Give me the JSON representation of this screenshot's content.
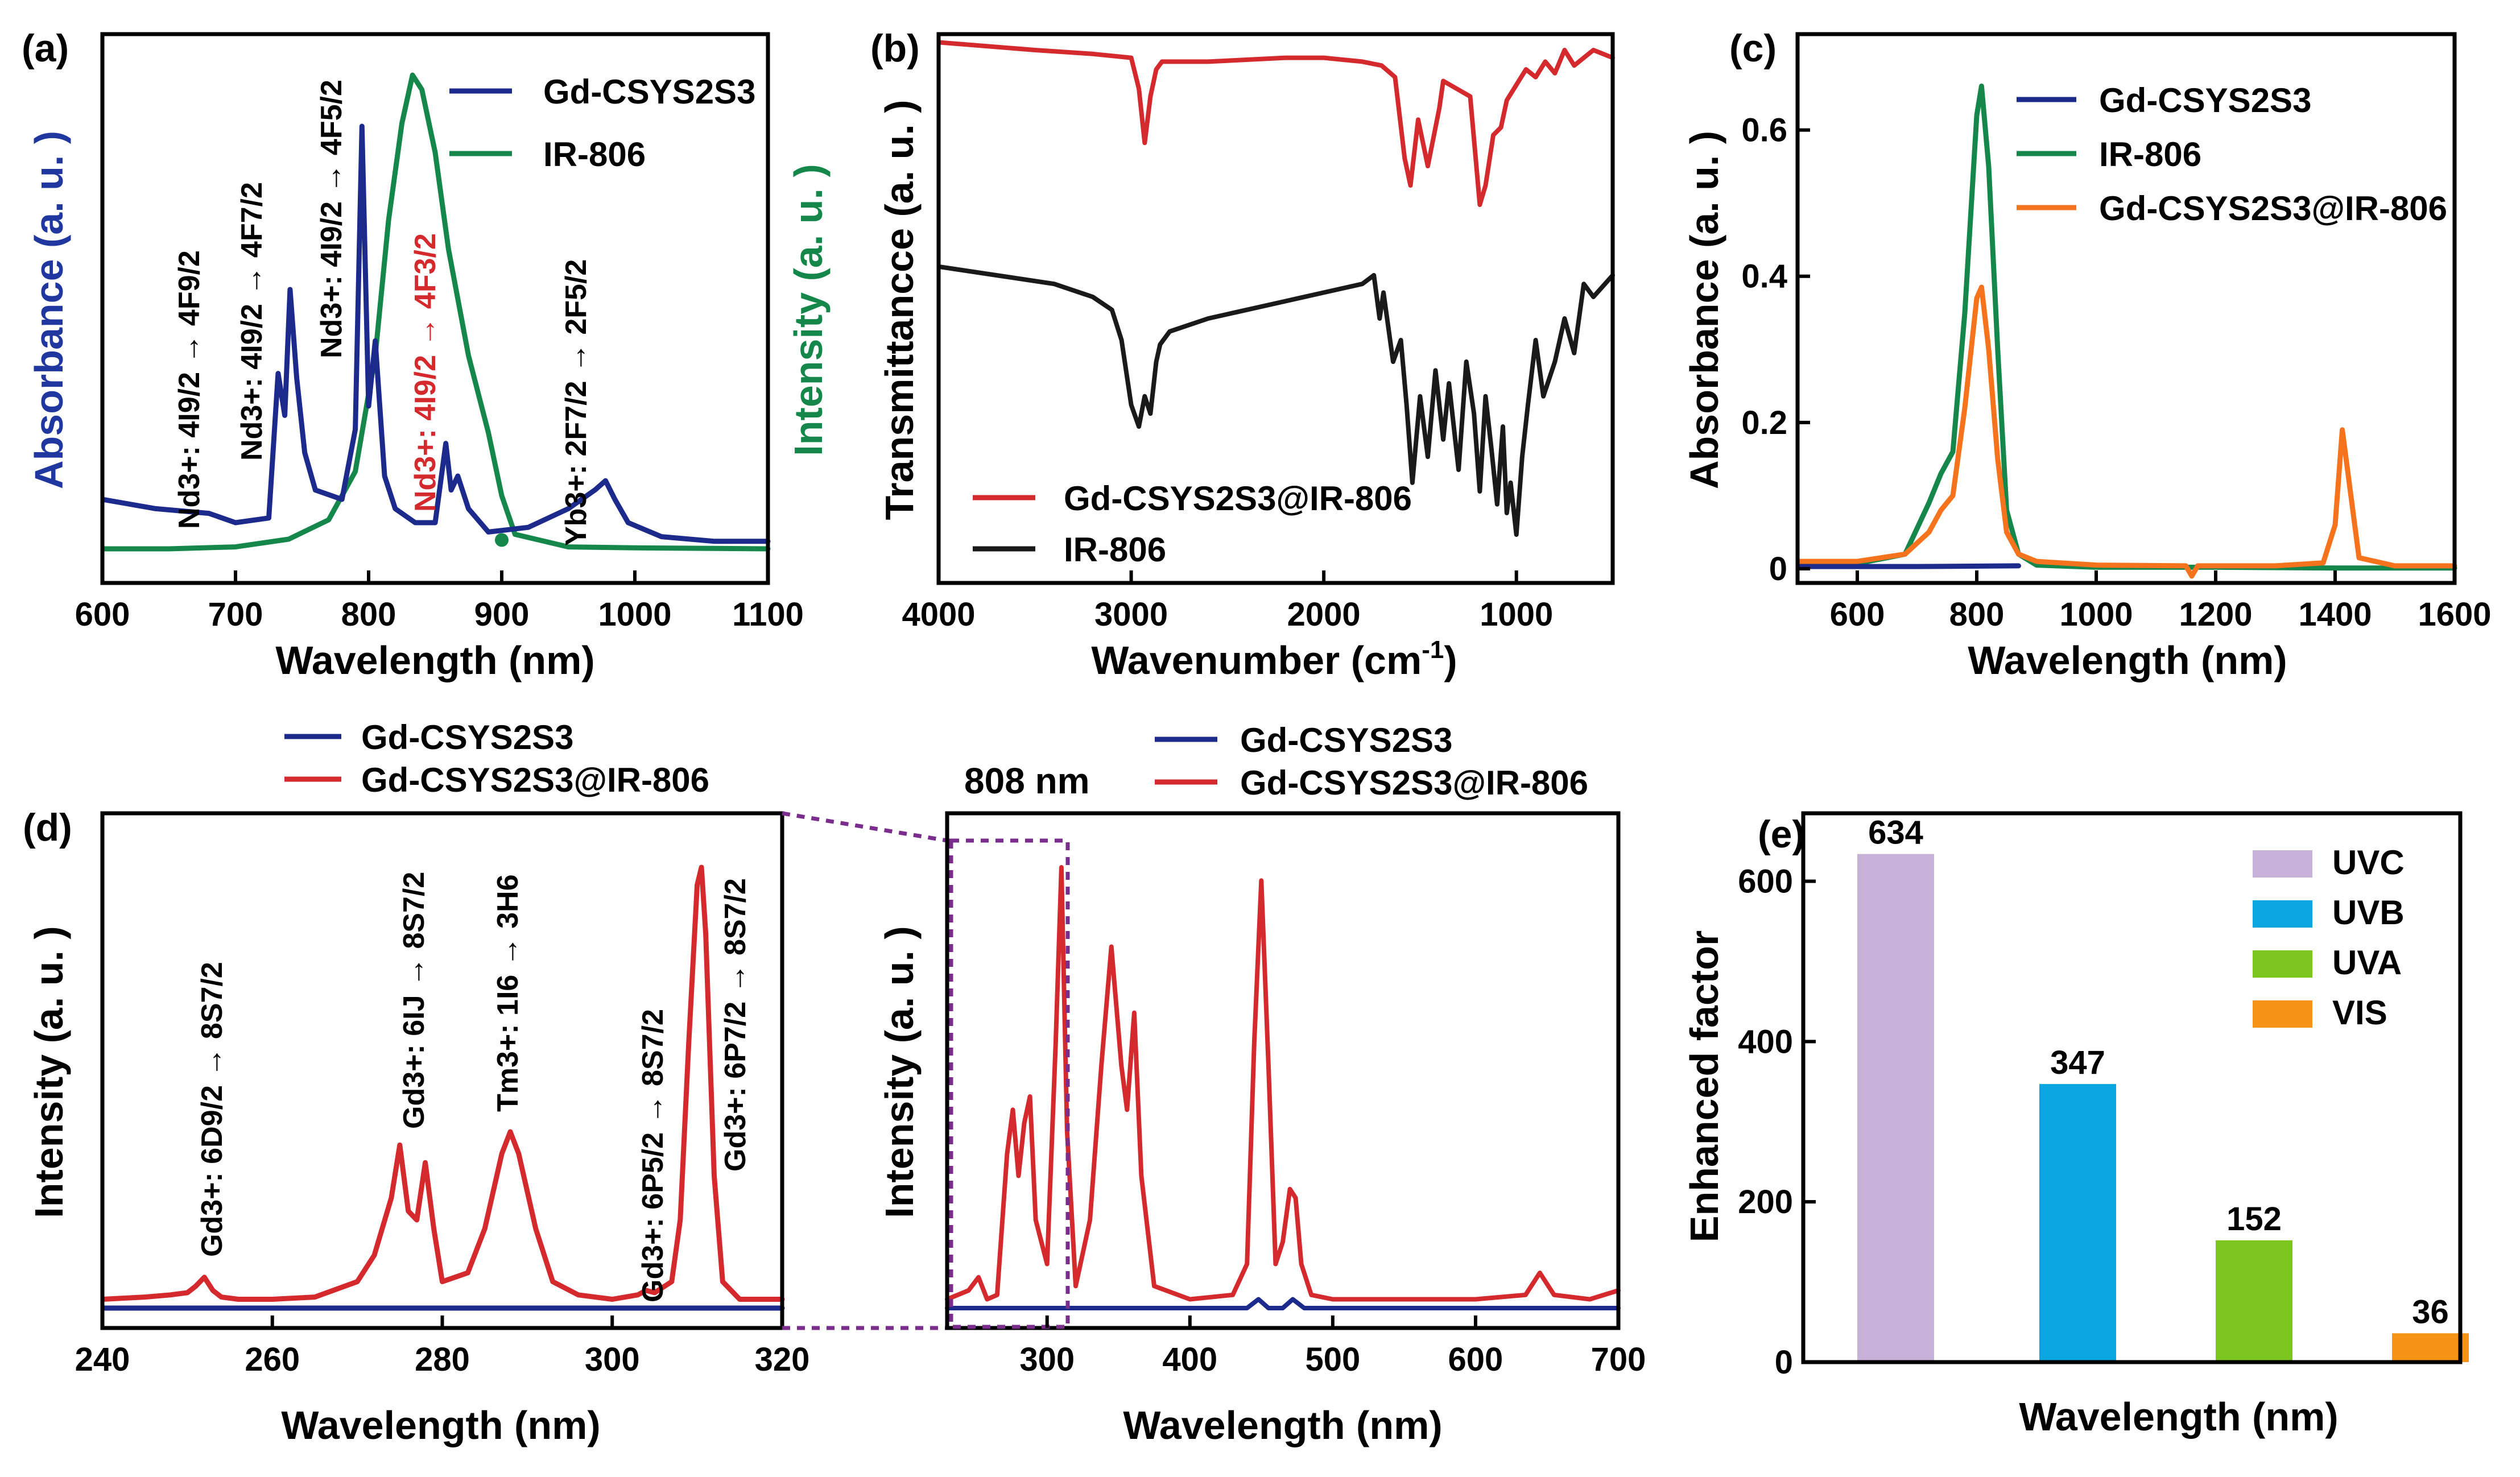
{
  "colors": {
    "navy": "#1c2a8c",
    "green": "#16874a",
    "red": "#d42a2e",
    "black": "#1a1a1a",
    "orange": "#f5731c",
    "purple": "#7a2d8c",
    "blue_label": "#2137a0"
  },
  "chart_data": [
    {
      "panel": "(a)",
      "type": "line",
      "xlabel": "Wavelength (nm)",
      "ylabel": "Absorbance (a. u. )",
      "ylabel2": "Intensity (a. u. )",
      "xlim": [
        600,
        1100
      ],
      "xticks": [
        "600",
        "700",
        "800",
        "900",
        "1000",
        "1100"
      ],
      "legend": [
        "Gd-CSYS2S3",
        "IR-806"
      ],
      "annotations": [
        "Nd3+: 4I9/2 → 4F9/2",
        "Nd3+: 4I9/2 → 4F7/2",
        "Nd3+: 4I9/2 → 4F5/2",
        "Nd3+: 4I9/2 → 4F3/2",
        "Yb3+: 2F7/2 → 2F5/2"
      ],
      "series": [
        {
          "name": "Gd-CSYS2S3",
          "x": [
            600,
            640,
            680,
            700,
            725,
            732,
            737,
            741,
            746,
            752,
            760,
            780,
            790,
            795,
            800,
            805,
            812,
            820,
            835,
            850,
            858,
            862,
            867,
            875,
            890,
            920,
            950,
            970,
            978,
            985,
            995,
            1020,
            1060,
            1100
          ],
          "y": [
            0.1,
            0.08,
            0.07,
            0.05,
            0.06,
            0.37,
            0.28,
            0.55,
            0.36,
            0.2,
            0.12,
            0.1,
            0.25,
            0.9,
            0.3,
            0.44,
            0.15,
            0.08,
            0.05,
            0.05,
            0.22,
            0.12,
            0.15,
            0.08,
            0.03,
            0.04,
            0.08,
            0.12,
            0.14,
            0.1,
            0.05,
            0.02,
            0.01,
            0.01
          ]
        },
        {
          "name": "IR-806",
          "x": [
            600,
            650,
            700,
            740,
            770,
            790,
            805,
            815,
            825,
            833,
            840,
            850,
            860,
            875,
            890,
            900,
            910,
            950,
            1000,
            1050,
            1100
          ],
          "y": [
            0,
            0,
            0.004,
            0.02,
            0.06,
            0.16,
            0.4,
            0.68,
            0.88,
            0.98,
            0.95,
            0.82,
            0.62,
            0.4,
            0.24,
            0.11,
            0.03,
            0.004,
            0.002,
            0.001,
            0
          ]
        }
      ]
    },
    {
      "panel": "(b)",
      "type": "line",
      "xlabel": "Wavenumber (cm-1)",
      "ylabel": "Transmittancce (a. u. )",
      "xlim": [
        4000,
        500
      ],
      "xticks": [
        "4000",
        "3000",
        "2000",
        "1000"
      ],
      "legend": [
        "Gd-CSYS2S3@IR-806",
        "IR-806"
      ],
      "series": [
        {
          "name": "Gd-CSYS2S3@IR-806",
          "x": [
            4000,
            3500,
            3200,
            3000,
            2960,
            2930,
            2900,
            2870,
            2840,
            2600,
            2200,
            2000,
            1800,
            1700,
            1630,
            1580,
            1550,
            1510,
            1460,
            1400,
            1380,
            1240,
            1190,
            1160,
            1120,
            1080,
            1050,
            950,
            900,
            850,
            800,
            750,
            700,
            600,
            500
          ],
          "y": [
            0.92,
            0.9,
            0.89,
            0.88,
            0.8,
            0.66,
            0.78,
            0.85,
            0.87,
            0.87,
            0.88,
            0.88,
            0.87,
            0.86,
            0.83,
            0.62,
            0.55,
            0.72,
            0.6,
            0.75,
            0.82,
            0.78,
            0.5,
            0.55,
            0.68,
            0.7,
            0.77,
            0.85,
            0.83,
            0.87,
            0.84,
            0.9,
            0.86,
            0.9,
            0.88
          ]
        },
        {
          "name": "IR-806",
          "x": [
            4000,
            3700,
            3400,
            3200,
            3100,
            3050,
            3000,
            2960,
            2930,
            2900,
            2870,
            2850,
            2800,
            2600,
            2400,
            2200,
            2000,
            1800,
            1740,
            1710,
            1690,
            1640,
            1600,
            1570,
            1540,
            1500,
            1460,
            1420,
            1380,
            1350,
            1300,
            1260,
            1220,
            1190,
            1160,
            1130,
            1100,
            1070,
            1050,
            1030,
            1000,
            970,
            940,
            900,
            860,
            800,
            750,
            700,
            650,
            600,
            500
          ],
          "y": [
            0.62,
            0.6,
            0.58,
            0.55,
            0.52,
            0.45,
            0.3,
            0.25,
            0.32,
            0.28,
            0.4,
            0.44,
            0.47,
            0.5,
            0.52,
            0.54,
            0.56,
            0.58,
            0.6,
            0.5,
            0.56,
            0.4,
            0.45,
            0.3,
            0.12,
            0.32,
            0.18,
            0.38,
            0.22,
            0.35,
            0.15,
            0.4,
            0.28,
            0.1,
            0.32,
            0.2,
            0.07,
            0.25,
            0.05,
            0.12,
            0.0,
            0.18,
            0.3,
            0.45,
            0.32,
            0.4,
            0.5,
            0.42,
            0.58,
            0.55,
            0.6
          ]
        }
      ]
    },
    {
      "panel": "(c)",
      "type": "line",
      "xlabel": "Wavelength (nm)",
      "ylabel": "Absorbance (a. u. )",
      "xlim": [
        500,
        1600
      ],
      "ylim": [
        0,
        0.7
      ],
      "xticks": [
        "600",
        "800",
        "1000",
        "1200",
        "1400",
        "1600"
      ],
      "yticks": [
        "0",
        "0.2",
        "0.4",
        "0.6"
      ],
      "legend": [
        "Gd-CSYS2S3",
        "IR-806",
        "Gd-CSYS2S3@IR-806"
      ],
      "series": [
        {
          "name": "Gd-CSYS2S3",
          "x": [
            500,
            700,
            870
          ],
          "y": [
            0.003,
            0.003,
            0.004
          ]
        },
        {
          "name": "IR-806",
          "x": [
            500,
            600,
            680,
            720,
            740,
            760,
            780,
            800,
            808,
            820,
            835,
            850,
            870,
            900,
            1000,
            1200,
            1400,
            1600
          ],
          "y": [
            0.005,
            0.007,
            0.02,
            0.09,
            0.13,
            0.16,
            0.35,
            0.62,
            0.66,
            0.55,
            0.3,
            0.08,
            0.02,
            0.005,
            0.002,
            0.002,
            0.001,
            0.001
          ]
        },
        {
          "name": "Gd-CSYS2S3@IR-806",
          "x": [
            500,
            600,
            680,
            720,
            740,
            760,
            780,
            800,
            808,
            820,
            835,
            850,
            870,
            900,
            1000,
            1150,
            1160,
            1170,
            1300,
            1380,
            1400,
            1412,
            1420,
            1440,
            1500,
            1600
          ],
          "y": [
            0.01,
            0.01,
            0.02,
            0.05,
            0.08,
            0.1,
            0.22,
            0.37,
            0.385,
            0.3,
            0.15,
            0.05,
            0.02,
            0.01,
            0.005,
            0.004,
            -0.01,
            0.004,
            0.004,
            0.008,
            0.06,
            0.19,
            0.14,
            0.015,
            0.004,
            0.004
          ]
        }
      ]
    },
    {
      "panel": "(d) left",
      "type": "line",
      "xlabel": "Wavelength (nm)",
      "ylabel": "Intensity (a. u. )",
      "xlim": [
        240,
        320
      ],
      "xticks": [
        "240",
        "260",
        "280",
        "300",
        "320"
      ],
      "legend": [
        "Gd-CSYS2S3",
        "Gd-CSYS2S3@IR-806"
      ],
      "annotations": [
        "Gd3+: 6D9/2 → 8S7/2",
        "Gd3+: 6IJ → 8S7/2",
        "Tm3+: 1I6 → 3H6",
        "Gd3+: 6P5/2 → 8S7/2",
        "Gd3+: 6P7/2 → 8S7/2"
      ],
      "series": [
        {
          "name": "Gd-CSYS2S3",
          "x": [
            240,
            320
          ],
          "y": [
            0,
            0
          ]
        },
        {
          "name": "Gd-CSYS2S3@IR-806",
          "x": [
            240,
            245,
            248,
            250,
            251,
            252,
            253,
            254,
            256,
            260,
            265,
            270,
            272,
            274,
            275,
            276,
            277,
            278,
            279,
            280,
            283,
            285,
            287,
            288,
            289,
            291,
            293,
            296,
            300,
            303,
            304,
            305,
            307,
            308,
            309,
            310,
            310.5,
            311,
            312,
            313,
            315,
            320
          ],
          "y": [
            0.02,
            0.025,
            0.03,
            0.035,
            0.05,
            0.07,
            0.04,
            0.025,
            0.02,
            0.02,
            0.025,
            0.06,
            0.12,
            0.25,
            0.37,
            0.22,
            0.2,
            0.33,
            0.18,
            0.06,
            0.08,
            0.18,
            0.35,
            0.4,
            0.35,
            0.18,
            0.06,
            0.03,
            0.02,
            0.03,
            0.04,
            0.035,
            0.06,
            0.2,
            0.6,
            0.96,
            1.0,
            0.85,
            0.3,
            0.06,
            0.02,
            0.02
          ]
        }
      ]
    },
    {
      "panel": "(d) right",
      "type": "line",
      "xlabel": "Wavelength (nm)",
      "ylabel": "Intensity (a. u. )",
      "xlim": [
        230,
        700
      ],
      "xticks": [
        "300",
        "400",
        "500",
        "600",
        "700"
      ],
      "excitation_label": "808 nm",
      "legend": [
        "Gd-CSYS2S3",
        "Gd-CSYS2S3@IR-806"
      ],
      "series": [
        {
          "name": "Gd-CSYS2S3",
          "x": [
            230,
            440,
            448,
            455,
            465,
            472,
            480,
            700
          ],
          "y": [
            0,
            0,
            0.02,
            0,
            0,
            0.02,
            0,
            0
          ]
        },
        {
          "name": "Gd-CSYS2S3@IR-806",
          "x": [
            230,
            245,
            252,
            258,
            265,
            272,
            276,
            280,
            284,
            288,
            292,
            300,
            306,
            310,
            314,
            320,
            330,
            338,
            345,
            352,
            356,
            361,
            366,
            375,
            400,
            430,
            440,
            445,
            450,
            455,
            460,
            465,
            470,
            474,
            478,
            485,
            500,
            550,
            600,
            635,
            645,
            655,
            680,
            700
          ],
          "y": [
            0.02,
            0.04,
            0.07,
            0.02,
            0.03,
            0.35,
            0.45,
            0.3,
            0.42,
            0.48,
            0.2,
            0.1,
            0.6,
            1.0,
            0.4,
            0.05,
            0.2,
            0.55,
            0.82,
            0.55,
            0.45,
            0.67,
            0.3,
            0.05,
            0.02,
            0.03,
            0.1,
            0.6,
            0.97,
            0.55,
            0.1,
            0.15,
            0.27,
            0.25,
            0.1,
            0.03,
            0.02,
            0.02,
            0.02,
            0.03,
            0.08,
            0.03,
            0.02,
            0.04
          ]
        }
      ]
    },
    {
      "panel": "(e)",
      "type": "bar",
      "xlabel": "Wavelength (nm)",
      "ylabel": "Enhanced factor",
      "ylim": [
        0,
        660
      ],
      "yticks": [
        "0",
        "200",
        "400",
        "600"
      ],
      "categories": [
        "UVC",
        "UVB",
        "UVA",
        "VIS"
      ],
      "values": [
        634,
        347,
        152,
        36
      ],
      "value_labels": [
        "634",
        "347",
        "152",
        "36"
      ],
      "colors": [
        "#c8b1d8",
        "#0aa6df",
        "#7cc61f",
        "#f79418"
      ],
      "legend": [
        "UVC",
        "UVB",
        "UVA",
        "VIS"
      ]
    }
  ]
}
